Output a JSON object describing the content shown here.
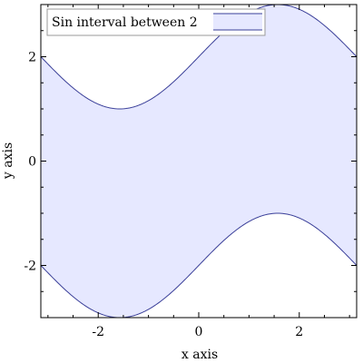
{
  "chart_data": {
    "type": "area",
    "title": "",
    "xlabel": "x axis",
    "ylabel": "y axis",
    "xlim": [
      -3.14159,
      3.14159
    ],
    "ylim": [
      -3,
      3
    ],
    "x_ticks": [
      -2,
      0,
      2
    ],
    "y_ticks": [
      -2,
      0,
      2
    ],
    "x_tick_labels": [
      "-2",
      "0",
      "2"
    ],
    "y_tick_labels": [
      "-2",
      "0",
      "2"
    ],
    "legend_position": "top-left",
    "grid": false,
    "series": [
      {
        "name": "Sin interval between 2",
        "function_lower": "sin(x) - 2",
        "function_upper": "sin(x) + 2",
        "x": [
          -3.14159,
          -2.3562,
          -1.5708,
          -0.7854,
          0,
          0.7854,
          1.5708,
          2.3562,
          3.14159
        ],
        "lower": [
          -2,
          -2.707,
          -3,
          -2.707,
          -2,
          -1.293,
          -1,
          -1.293,
          -2
        ],
        "upper": [
          2,
          1.293,
          1,
          1.293,
          2,
          2.707,
          3,
          2.707,
          2
        ],
        "line_color": "#3a3f99",
        "fill_color": "#e6e8ff"
      }
    ]
  }
}
